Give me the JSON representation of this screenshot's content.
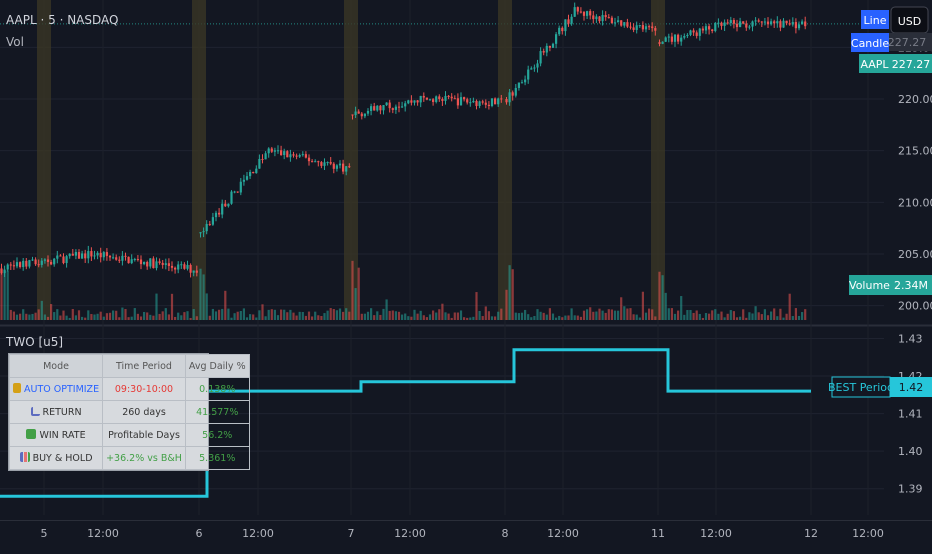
{
  "header": {
    "symbol": "AAPL · 5 · NASDAQ",
    "indicator_vol": "Vol",
    "pane2_title": "TWO [u5]",
    "currency_button": "USD",
    "badge_line": "Line",
    "badge_candle": "Candle",
    "badge_aapl_label": "AAPL",
    "badge_aapl_value": "227.27",
    "badge_volume_label": "Volume",
    "badge_volume_value": "2.34M",
    "badge_best_label": "BEST Period",
    "badge_best_value": "1.42",
    "badge_hidden_value": "227.27"
  },
  "colors": {
    "background": "#131722",
    "up": "#26a69a",
    "down": "#ef5350",
    "highlight": "#3a3626",
    "best_line": "#26c6da",
    "accent_blue": "#2962ff"
  },
  "table": {
    "headers": [
      "Mode",
      "Time Period",
      "Avg Daily %"
    ],
    "rows": [
      {
        "icon": "trophy-icon",
        "mode": "AUTO OPTIMIZE",
        "period": "09:30-10:00",
        "value": "0.138%"
      },
      {
        "icon": "chart-up-icon",
        "mode": "RETURN",
        "period": "260 days",
        "value": "41.577%"
      },
      {
        "icon": "check-icon",
        "mode": "WIN RATE",
        "period": "Profitable Days",
        "value": "56.2%"
      },
      {
        "icon": "bar-chart-icon",
        "mode": "BUY & HOLD",
        "period": "+36.2% vs B&H",
        "value": "5.361%"
      }
    ]
  },
  "chart_data": [
    {
      "type": "candlestick",
      "title": "",
      "ylim": [
        199,
        229
      ],
      "y_ticks": [
        "225.00",
        "220.00",
        "215.00",
        "210.00",
        "205.00",
        "200.00"
      ],
      "x_ticks": [
        "5",
        "12:00",
        "6",
        "12:00",
        "7",
        "12:00",
        "8",
        "12:00",
        "11",
        "12:00",
        "12",
        "12:00"
      ],
      "last_price": 227.27,
      "highlighted_session_opens": [
        "5",
        "6",
        "7",
        "8",
        "11"
      ],
      "days": [
        {
          "label": "5",
          "open": 203.6,
          "high_point": 205.0,
          "close": 203.4
        },
        {
          "label": "6",
          "open": 207.0,
          "high_point": 215.0,
          "close": 213.2
        },
        {
          "label": "7",
          "open": 218.5,
          "high_point": 220.0,
          "close": 219.6
        },
        {
          "label": "8",
          "open": 220.0,
          "high_point": 228.5,
          "close": 226.5
        },
        {
          "label": "11",
          "open": 225.5,
          "high_point": 227.2,
          "close": 227.27
        }
      ]
    },
    {
      "type": "line",
      "title": "TWO [u5]",
      "ylim": [
        1.383,
        1.432
      ],
      "y_ticks": [
        "1.43",
        "1.42",
        "1.41",
        "1.40",
        "1.39"
      ],
      "series": [
        {
          "name": "BEST Period",
          "steps": [
            {
              "from": "start",
              "value": 1.388
            },
            {
              "from": "6",
              "value": 1.416
            },
            {
              "from": "7",
              "value": 1.417
            },
            {
              "from": "7",
              "value": 1.419
            },
            {
              "from": "8",
              "value": 1.427
            },
            {
              "from": "11",
              "value": 1.416
            },
            {
              "to": "12",
              "value": 1.416
            }
          ]
        }
      ],
      "last_value": 1.42
    }
  ]
}
